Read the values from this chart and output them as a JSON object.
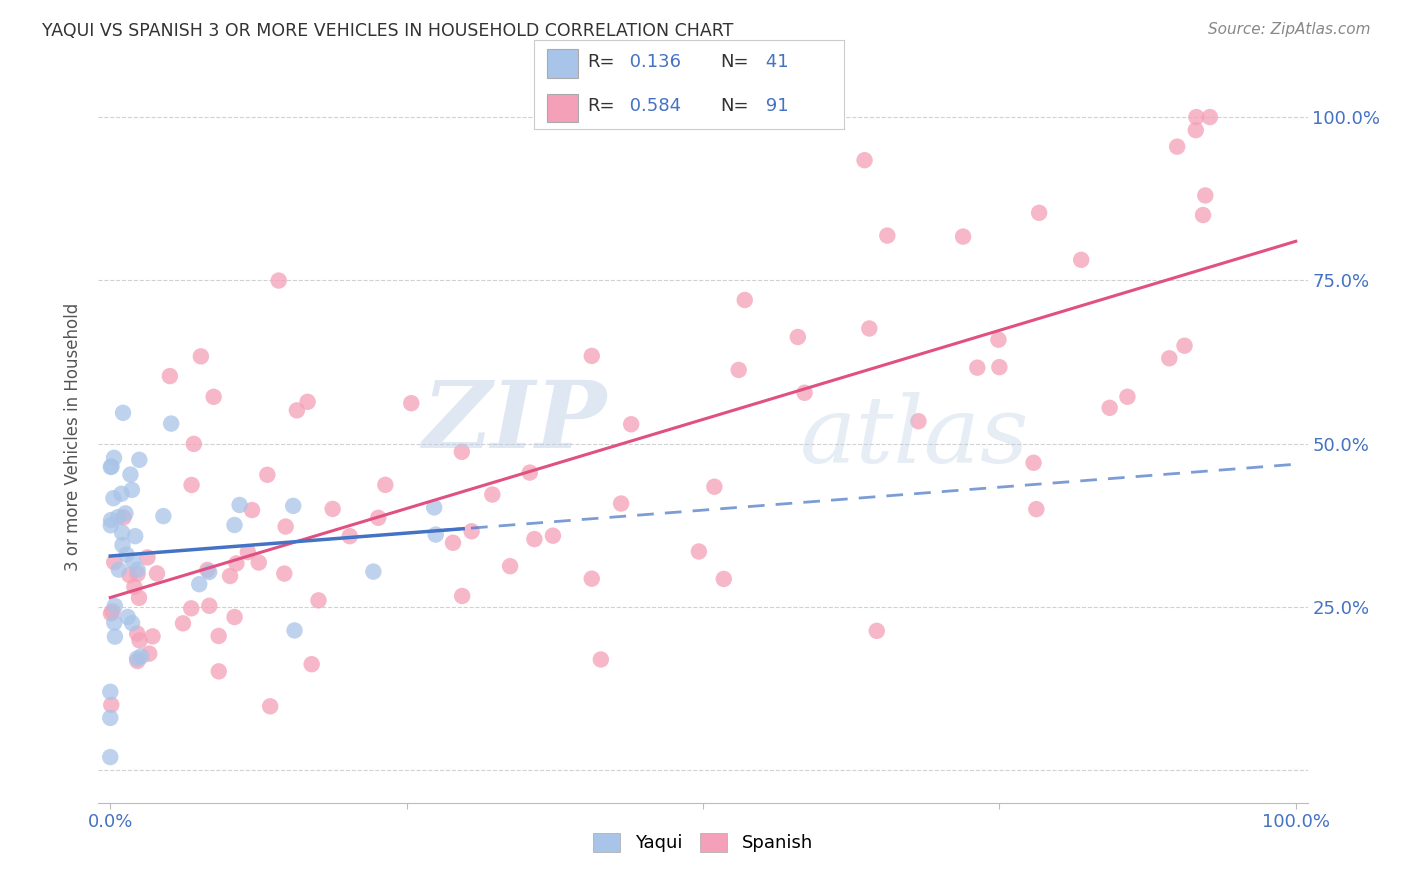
{
  "title": "YAQUI VS SPANISH 3 OR MORE VEHICLES IN HOUSEHOLD CORRELATION CHART",
  "source": "Source: ZipAtlas.com",
  "ylabel": "3 or more Vehicles in Household",
  "yaqui_R": 0.136,
  "yaqui_N": 41,
  "spanish_R": 0.584,
  "spanish_N": 91,
  "watermark_zip": "ZIP",
  "watermark_atlas": "atlas",
  "yaqui_color": "#a8c4e8",
  "yaqui_line_color": "#4472c4",
  "spanish_color": "#f4a0b8",
  "spanish_line_color": "#e05080",
  "background_color": "#ffffff",
  "grid_color": "#cccccc",
  "axis_label_color": "#4472c4",
  "title_color": "#333333",
  "source_color": "#888888",
  "legend_border_color": "#cccccc",
  "legend_text_black": "#333333",
  "legend_text_blue": "#4472c4"
}
